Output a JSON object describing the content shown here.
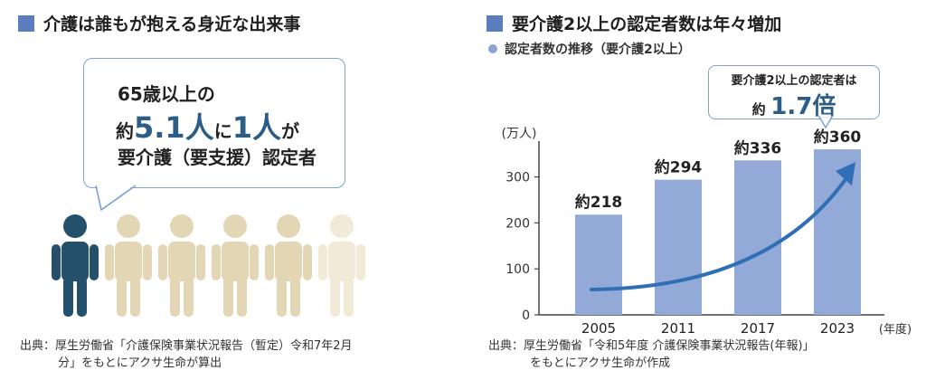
{
  "left": {
    "title": "介護は誰もが抱える身近な出来事",
    "bubble": {
      "line1": "65歳以上の",
      "prefix": "約",
      "value1": "5.1人",
      "connector": "に",
      "value2": "1人",
      "suffix": "が",
      "line3": "要介護（要支援）認定者"
    },
    "figures": {
      "highlighted": 1,
      "total": 6
    },
    "source_line1": "出典：厚生労働省「介護保険事業状況報告（暫定）令和7年2月",
    "source_line2": "分」をもとにアクサ生命が算出"
  },
  "right": {
    "title": "要介護2以上の認定者数は年々増加",
    "subtitle": "認定者数の推移（要介護2以上）",
    "callout": {
      "line1": "要介護2以上の認定者は",
      "prefix": "約",
      "value": "1.7倍"
    },
    "source_line1": "出典：厚生労働省「令和5年度 介護保険事業状況報告(年報)」",
    "source_line2": "をもとにアクサ生命が作成"
  },
  "chart_data": {
    "type": "bar",
    "categories": [
      "2005",
      "2011",
      "2017",
      "2023"
    ],
    "values": [
      218,
      294,
      336,
      360
    ],
    "value_labels": [
      "約218",
      "約294",
      "約336",
      "約360"
    ],
    "ylabel": "(万人)",
    "xlabel": "(年度)",
    "ylim": [
      0,
      370
    ],
    "yticks": [
      0,
      100,
      200,
      300
    ],
    "grid": false,
    "bar_color": "#93aad8",
    "arrow_color": "#2f6fb5"
  },
  "colors": {
    "accent": "#5b7cbf",
    "highlight_figure": "#24506c",
    "beige_figure": "#e3d6b4",
    "light_figure": "#f1ead6",
    "bubble_border": "#7fa2d6"
  }
}
